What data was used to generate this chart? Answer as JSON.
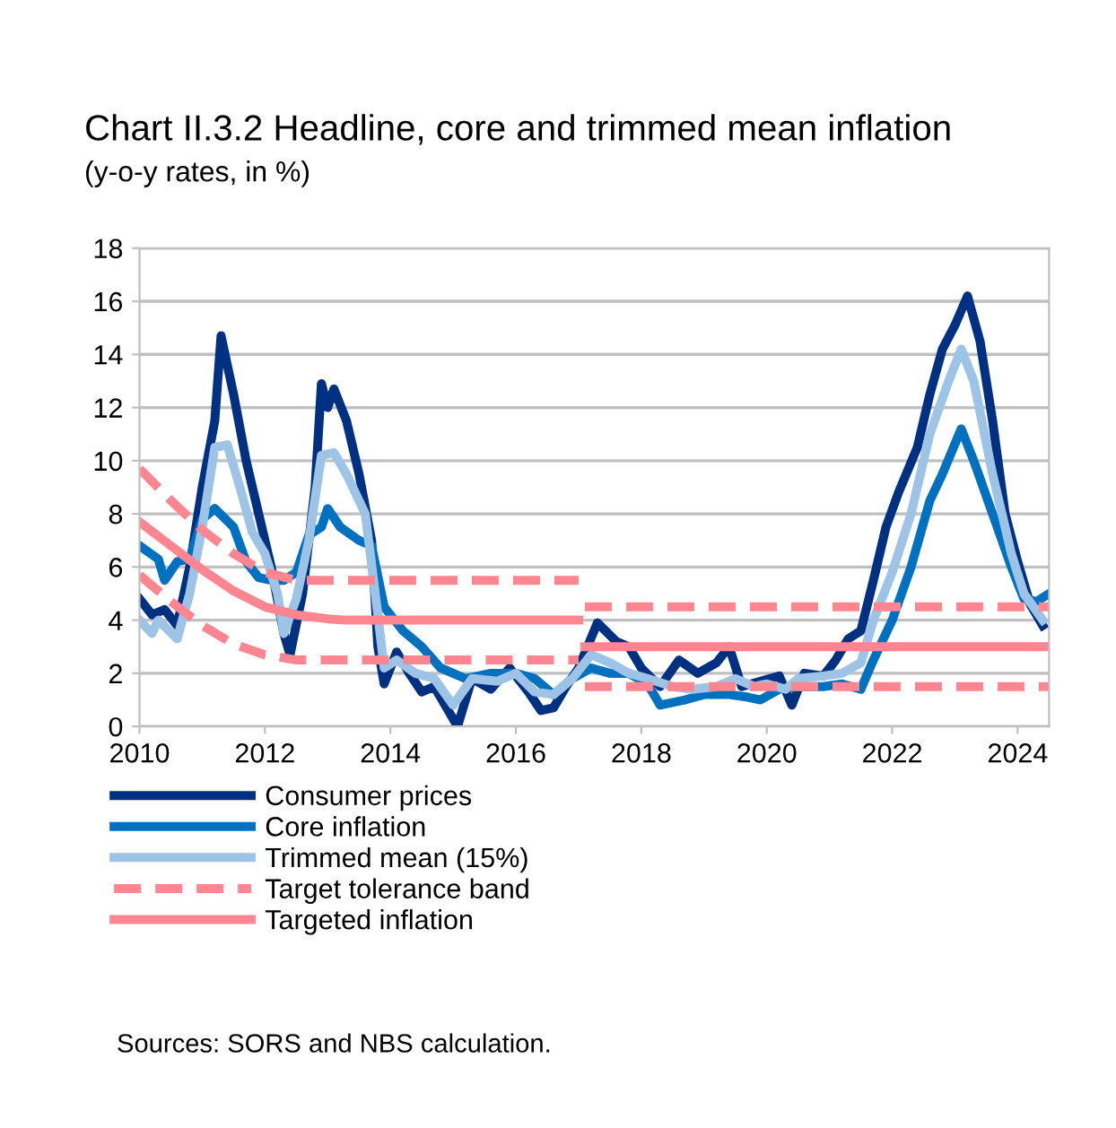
{
  "chart_data": {
    "type": "line",
    "title": "Chart II.3.2 Headline, core and trimmed mean inflation",
    "subtitle": "(y-o-y rates, in %)",
    "annotations": [
      "Sources: SORS and NBS calculation."
    ],
    "xlim": [
      2010,
      2024.5
    ],
    "xticks": [
      2010,
      2012,
      2014,
      2016,
      2018,
      2020,
      2022,
      2024
    ],
    "ylim": [
      0,
      18
    ],
    "yticks": [
      0,
      2,
      4,
      6,
      8,
      10,
      12,
      14,
      16,
      18
    ],
    "grid": "y",
    "legend": "bottom",
    "marker": "none",
    "series": [
      {
        "name": "Consumer prices",
        "color": "#003082",
        "line_style": "solid",
        "x": [
          2010.0,
          2010.2,
          2010.4,
          2010.6,
          2010.8,
          2011.0,
          2011.2,
          2011.3,
          2011.5,
          2011.7,
          2011.9,
          2012.1,
          2012.3,
          2012.4,
          2012.6,
          2012.8,
          2012.9,
          2013.0,
          2013.1,
          2013.3,
          2013.5,
          2013.7,
          2013.8,
          2013.9,
          2014.1,
          2014.3,
          2014.5,
          2014.7,
          2015.07,
          2015.3,
          2015.6,
          2015.9,
          2016.2,
          2016.4,
          2016.6,
          2016.8,
          2017.0,
          2017.3,
          2017.6,
          2017.8,
          2018.0,
          2018.3,
          2018.6,
          2018.9,
          2019.2,
          2019.4,
          2019.6,
          2019.9,
          2020.2,
          2020.4,
          2020.6,
          2020.9,
          2021.1,
          2021.3,
          2021.5,
          2021.7,
          2021.9,
          2022.1,
          2022.4,
          2022.6,
          2022.8,
          2023.0,
          2023.2,
          2023.4,
          2023.6,
          2023.8,
          2024.0,
          2024.2,
          2024.4
        ],
        "values": [
          4.8,
          4.2,
          4.4,
          3.8,
          6,
          9,
          11.5,
          14.7,
          12.5,
          10,
          8,
          6,
          3.5,
          2.7,
          5,
          9,
          12.9,
          12,
          12.7,
          11.5,
          9.5,
          7,
          3,
          1.6,
          2.8,
          2,
          1.3,
          1.5,
          0,
          1.8,
          1.4,
          2.2,
          1.3,
          0.6,
          0.7,
          1.5,
          2.2,
          3.9,
          3.2,
          3,
          2.2,
          1.5,
          2.5,
          2,
          2.4,
          3,
          1.5,
          1.7,
          1.9,
          0.8,
          2,
          1.9,
          2.5,
          3.3,
          3.6,
          5.5,
          7.5,
          8.8,
          10.5,
          12.5,
          14.2,
          15.1,
          16.2,
          14.5,
          11.5,
          8,
          6.2,
          4.6,
          3.8
        ]
      },
      {
        "name": "Core inflation",
        "color": "#0070c0",
        "line_style": "solid",
        "x": [
          2010.0,
          2010.3,
          2010.4,
          2010.6,
          2010.8,
          2011.0,
          2011.2,
          2011.5,
          2011.7,
          2011.9,
          2012.1,
          2012.3,
          2012.5,
          2012.7,
          2012.9,
          2013.0,
          2013.2,
          2013.5,
          2013.7,
          2013.9,
          2014.2,
          2014.5,
          2014.8,
          2015.2,
          2015.6,
          2016.0,
          2016.3,
          2016.6,
          2016.9,
          2017.2,
          2017.5,
          2017.8,
          2018.1,
          2018.3,
          2018.7,
          2019.0,
          2019.4,
          2019.7,
          2019.9,
          2020.2,
          2020.5,
          2020.9,
          2021.2,
          2021.5,
          2021.7,
          2022.0,
          2022.3,
          2022.6,
          2022.8,
          2023.1,
          2023.3,
          2023.6,
          2023.9,
          2024.1,
          2024.3,
          2024.5
        ],
        "values": [
          6.8,
          6.3,
          5.5,
          6.2,
          6.3,
          7.8,
          8.2,
          7.5,
          6.2,
          5.6,
          5.5,
          5.5,
          5.8,
          7.2,
          7.5,
          8.2,
          7.5,
          7,
          6.8,
          4.5,
          3.6,
          3,
          2.2,
          1.8,
          2,
          2,
          1.8,
          1.2,
          1.8,
          2.2,
          2,
          2,
          1.6,
          0.8,
          1,
          1.2,
          1.2,
          1.1,
          1,
          1.4,
          1.5,
          1.5,
          1.6,
          1.4,
          2.5,
          4,
          6,
          8.5,
          9.5,
          11.2,
          10,
          8,
          6,
          4.8,
          4.7,
          5
        ]
      },
      {
        "name": "Trimmed mean (15%)",
        "color": "#9dc3e6",
        "line_style": "solid",
        "x": [
          2010.0,
          2010.2,
          2010.3,
          2010.6,
          2010.8,
          2011.0,
          2011.2,
          2011.4,
          2011.6,
          2011.8,
          2012.0,
          2012.2,
          2012.3,
          2012.5,
          2012.7,
          2012.9,
          2013.1,
          2013.3,
          2013.6,
          2013.8,
          2013.9,
          2014.1,
          2014.4,
          2014.7,
          2015.0,
          2015.3,
          2015.7,
          2016.0,
          2016.3,
          2016.6,
          2016.9,
          2017.2,
          2017.5,
          2017.8,
          2018.1,
          2018.5,
          2018.8,
          2019.2,
          2019.5,
          2019.8,
          2020.0,
          2020.3,
          2020.5,
          2020.9,
          2021.2,
          2021.5,
          2021.7,
          2022.0,
          2022.3,
          2022.6,
          2022.9,
          2023.1,
          2023.3,
          2023.6,
          2023.9,
          2024.1,
          2024.4
        ],
        "values": [
          4,
          3.5,
          4,
          3.3,
          5,
          7.5,
          10.5,
          10.6,
          9,
          7.3,
          6.5,
          5,
          3.5,
          4.8,
          7,
          10.2,
          10.3,
          9.5,
          8,
          4.2,
          2.2,
          2.5,
          2,
          1.8,
          0.8,
          1.8,
          1.7,
          2,
          1.3,
          1.2,
          1.8,
          2.7,
          2.4,
          2,
          1.8,
          1.5,
          1.4,
          1.5,
          1.8,
          1.5,
          1.6,
          1.4,
          1.8,
          1.9,
          2,
          2.4,
          4,
          5.8,
          8,
          11,
          13,
          14.2,
          13,
          9.5,
          6.5,
          5,
          4
        ]
      },
      {
        "name": "Target tolerance band",
        "color": "#ff8591",
        "line_style": "dashed",
        "x": [
          2010,
          2010.5,
          2011,
          2011.5,
          2012,
          2012.5,
          2017.0,
          2017.05,
          2017.1,
          2024.5
        ],
        "values": [
          9.7,
          8.5,
          7.4,
          6.5,
          5.8,
          5.5,
          5.5,
          null,
          4.5,
          4.5
        ]
      },
      {
        "color": "#ff8591",
        "line_style": "dashed",
        "x": [
          2010,
          2010.5,
          2011,
          2011.5,
          2012,
          2012.5,
          2013,
          2017.0,
          2017.05,
          2017.1,
          2024.5
        ],
        "values": [
          5.7,
          4.7,
          3.8,
          3.1,
          2.7,
          2.5,
          2.5,
          2.5,
          null,
          1.5,
          1.5
        ]
      },
      {
        "name": "Targeted inflation",
        "color": "#ff8591",
        "line_style": "solid",
        "x": [
          2010,
          2010.5,
          2011,
          2011.5,
          2012,
          2012.5,
          2013,
          2013.3,
          2017.0,
          2017.05,
          2017.1,
          2024.5
        ],
        "values": [
          7.7,
          6.8,
          5.9,
          5.1,
          4.5,
          4.2,
          4.05,
          4,
          4,
          null,
          3,
          3
        ]
      }
    ]
  }
}
